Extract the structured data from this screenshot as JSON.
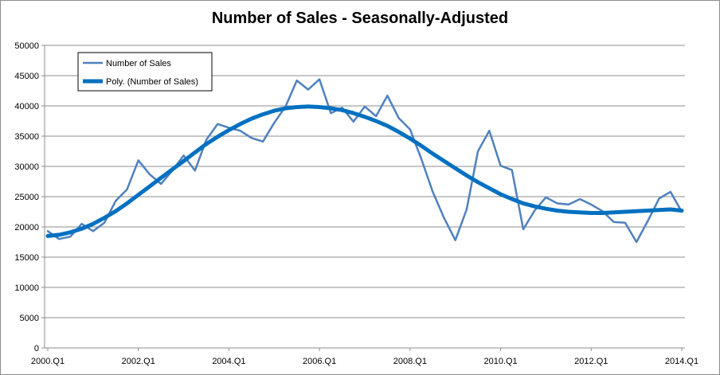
{
  "chart_data": {
    "type": "line",
    "title": "Number of Sales - Seasonally-Adjusted",
    "xlabel": "",
    "ylabel": "",
    "ylim": [
      0,
      50000
    ],
    "yticks": [
      0,
      5000,
      10000,
      15000,
      20000,
      25000,
      30000,
      35000,
      40000,
      45000,
      50000
    ],
    "ytick_labels": [
      "0",
      "5000",
      "10000",
      "15000",
      "20000",
      "25000",
      "30000",
      "35000",
      "40000",
      "45000",
      "50000"
    ],
    "x_tick_labels": [
      {
        "index": 0,
        "label": "2000.Q1"
      },
      {
        "index": 8,
        "label": "2002.Q1"
      },
      {
        "index": 16,
        "label": "2004.Q1"
      },
      {
        "index": 24,
        "label": "2006.Q1"
      },
      {
        "index": 32,
        "label": "2008.Q1"
      },
      {
        "index": 40,
        "label": "2010.Q1"
      },
      {
        "index": 48,
        "label": "2012.Q1"
      },
      {
        "index": 56,
        "label": "2014.Q1"
      }
    ],
    "grid": "horizontal",
    "legend_position": "top-left",
    "series": [
      {
        "name": "Number of Sales",
        "color": "#4f81bd",
        "values": [
          19300,
          18000,
          18400,
          20500,
          19300,
          20700,
          24300,
          26200,
          31000,
          28700,
          27100,
          29300,
          31800,
          29300,
          34400,
          37000,
          36400,
          35900,
          34700,
          34100,
          37200,
          39900,
          44200,
          42700,
          44400,
          38800,
          39700,
          37400,
          39900,
          38300,
          41700,
          38000,
          36100,
          31200,
          25800,
          21500,
          17800,
          22900,
          32500,
          35900,
          30100,
          29400,
          19600,
          22700,
          24900,
          23900,
          23700,
          24600,
          23700,
          22600,
          20800,
          20700,
          17500,
          21000,
          24700,
          25800,
          22500
        ]
      },
      {
        "name": "Poly. (Number of Sales)",
        "color": "#0070c0",
        "values": [
          18500,
          18700,
          19100,
          19700,
          20500,
          21500,
          22600,
          23900,
          25300,
          26700,
          28100,
          29500,
          30900,
          32300,
          33700,
          34900,
          36000,
          37000,
          37900,
          38600,
          39200,
          39600,
          39800,
          39900,
          39800,
          39600,
          39300,
          38800,
          38200,
          37500,
          36700,
          35700,
          34600,
          33400,
          32100,
          30900,
          29700,
          28500,
          27400,
          26400,
          25400,
          24600,
          23900,
          23400,
          23000,
          22700,
          22500,
          22400,
          22300,
          22300,
          22400,
          22500,
          22600,
          22700,
          22800,
          22900,
          22700
        ]
      }
    ]
  }
}
